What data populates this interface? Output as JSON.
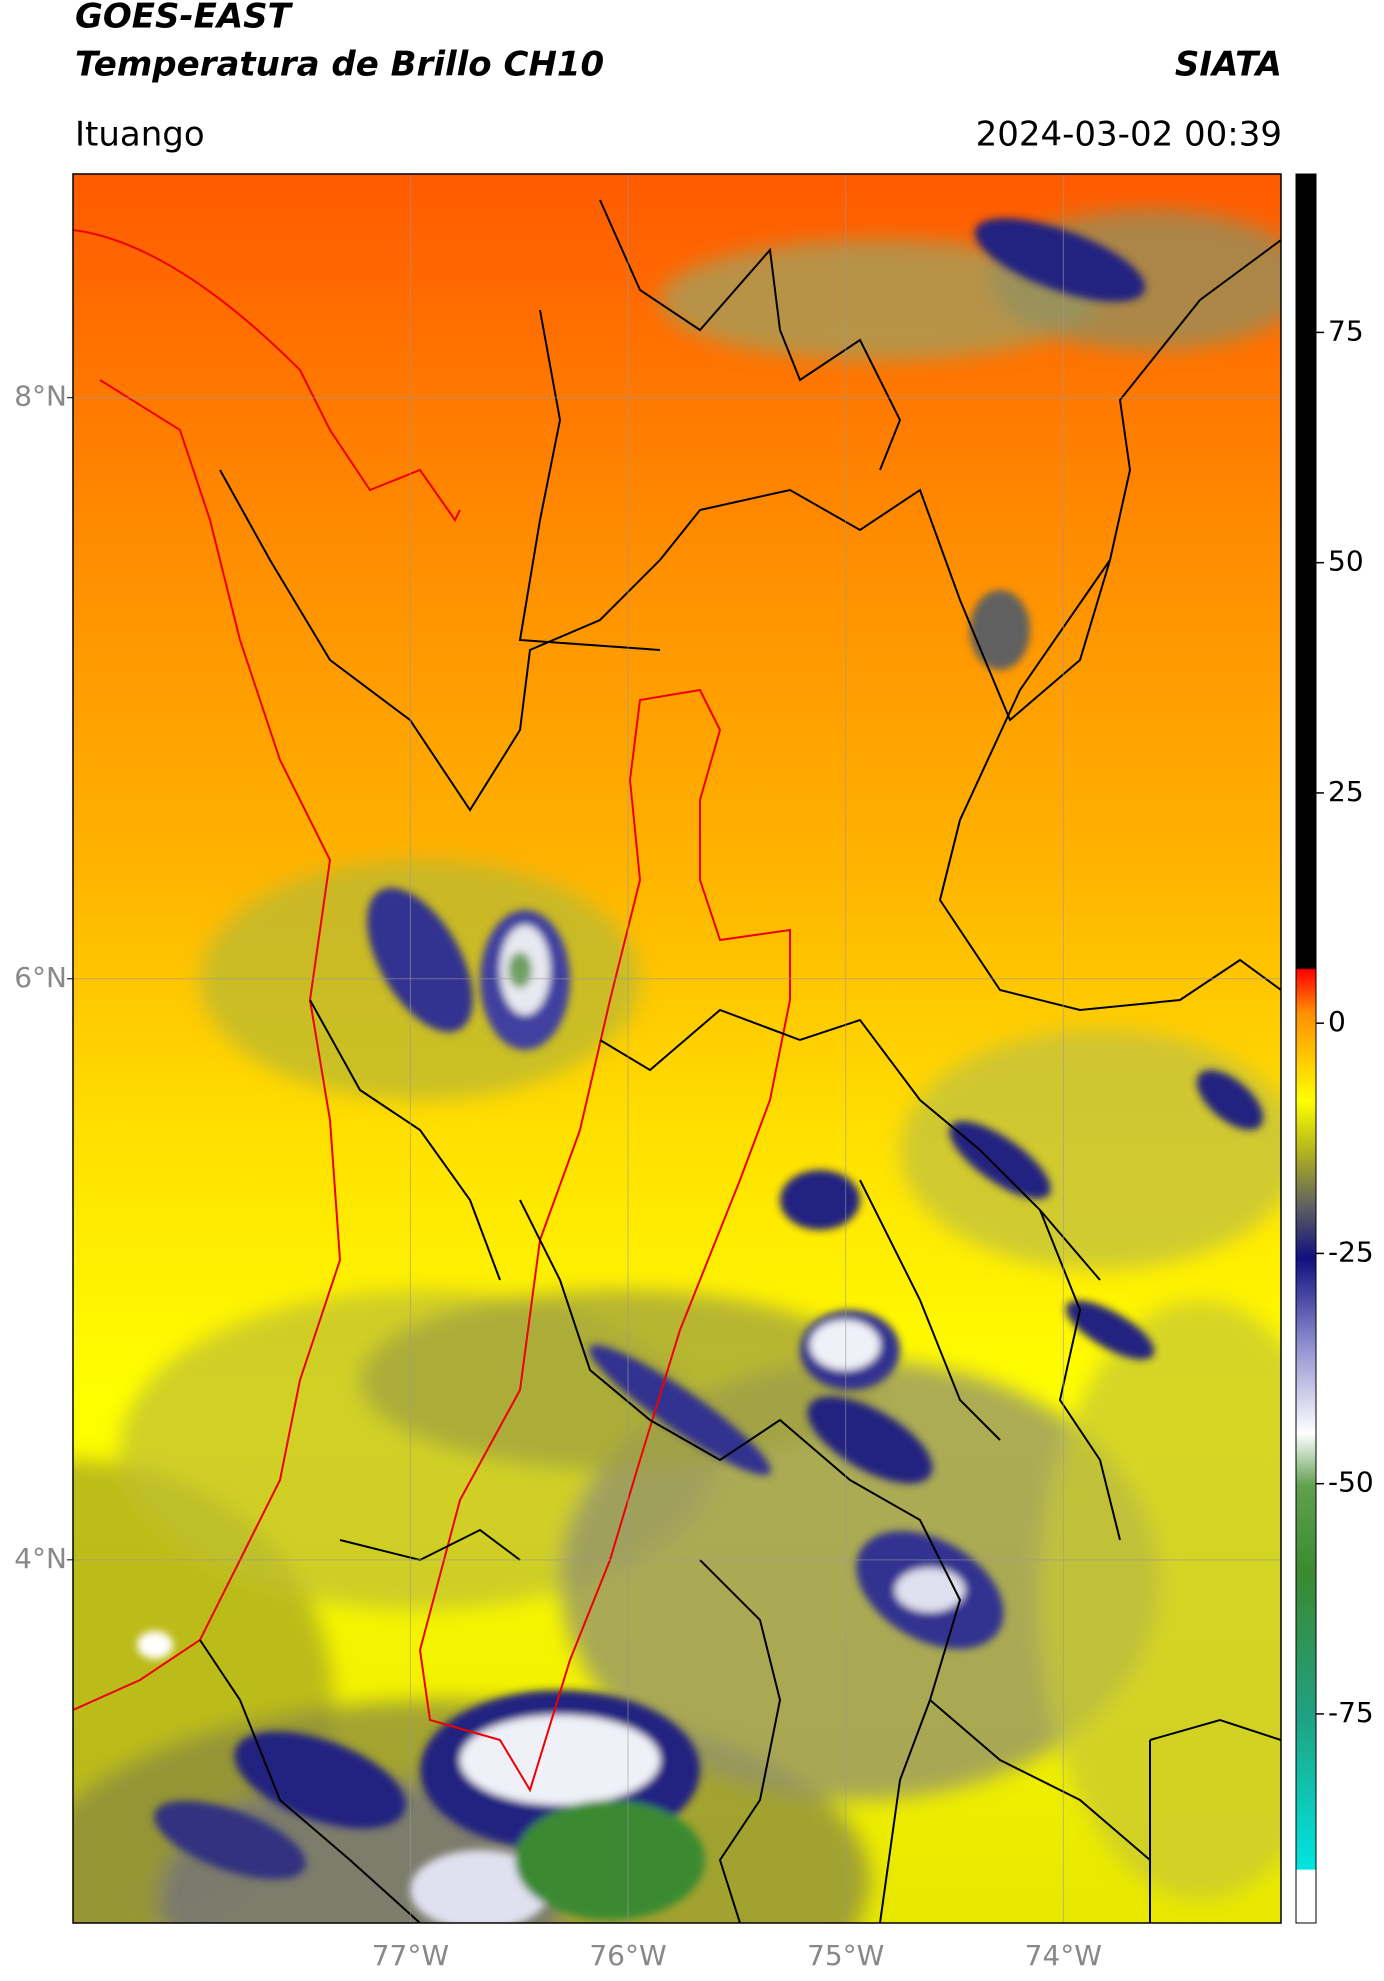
{
  "chart_data": {
    "type": "map",
    "title": "GOES-EAST",
    "subtitle": "Temperatura de Brillo CH10",
    "source": "SIATA",
    "region": "Ituango",
    "datetime": "2024-03-02 00:39",
    "xlim": [
      -78.55,
      -73.0
    ],
    "ylim": [
      2.75,
      8.77
    ],
    "xticks": [
      {
        "value": -77,
        "label": "77°W"
      },
      {
        "value": -76,
        "label": "76°W"
      },
      {
        "value": -75,
        "label": "75°W"
      },
      {
        "value": -74,
        "label": "74°W"
      }
    ],
    "yticks": [
      {
        "value": 8,
        "label": "8°N"
      },
      {
        "value": 6,
        "label": "6°N"
      },
      {
        "value": 4,
        "label": "4°N"
      }
    ],
    "grid": true,
    "colorbar": {
      "lim": [
        -97.7,
        92.2
      ],
      "ticks": [
        75,
        50,
        25,
        0,
        -25,
        -50,
        -75
      ]
    }
  }
}
